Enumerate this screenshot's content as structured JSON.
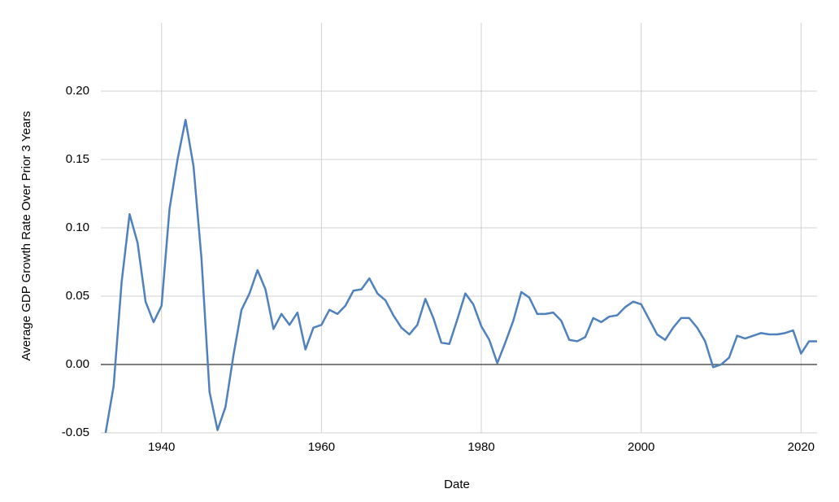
{
  "chart_data": {
    "type": "line",
    "xlabel": "Date",
    "ylabel": "Average GDP Growth Rate Over Prior 3 Years",
    "x": [
      1933,
      1934,
      1935,
      1936,
      1937,
      1938,
      1939,
      1940,
      1941,
      1942,
      1943,
      1944,
      1945,
      1946,
      1947,
      1948,
      1949,
      1950,
      1951,
      1952,
      1953,
      1954,
      1955,
      1956,
      1957,
      1958,
      1959,
      1960,
      1961,
      1962,
      1963,
      1964,
      1965,
      1966,
      1967,
      1968,
      1969,
      1970,
      1971,
      1972,
      1973,
      1974,
      1975,
      1976,
      1977,
      1978,
      1979,
      1980,
      1981,
      1982,
      1983,
      1984,
      1985,
      1986,
      1987,
      1988,
      1989,
      1990,
      1991,
      1992,
      1993,
      1994,
      1995,
      1996,
      1997,
      1998,
      1999,
      2000,
      2001,
      2002,
      2003,
      2004,
      2005,
      2006,
      2007,
      2008,
      2009,
      2010,
      2011,
      2012,
      2013,
      2014,
      2015,
      2016,
      2017,
      2018,
      2019,
      2020,
      2021,
      2022
    ],
    "values": [
      -0.05,
      -0.016,
      0.06,
      0.11,
      0.089,
      0.046,
      0.031,
      0.043,
      0.114,
      0.15,
      0.179,
      0.145,
      0.077,
      -0.02,
      -0.048,
      -0.031,
      0.007,
      0.04,
      0.052,
      0.069,
      0.055,
      0.026,
      0.037,
      0.029,
      0.038,
      0.011,
      0.027,
      0.029,
      0.04,
      0.037,
      0.043,
      0.054,
      0.055,
      0.063,
      0.052,
      0.047,
      0.036,
      0.027,
      0.022,
      0.029,
      0.048,
      0.034,
      0.016,
      0.015,
      0.033,
      0.052,
      0.044,
      0.028,
      0.018,
      0.001,
      0.016,
      0.032,
      0.053,
      0.049,
      0.037,
      0.037,
      0.038,
      0.032,
      0.018,
      0.017,
      0.02,
      0.034,
      0.031,
      0.035,
      0.036,
      0.042,
      0.046,
      0.044,
      0.033,
      0.022,
      0.018,
      0.027,
      0.034,
      0.034,
      0.027,
      0.017,
      -0.002,
      0.0,
      0.005,
      0.021,
      0.019,
      0.021,
      0.023,
      0.022,
      0.022,
      0.023,
      0.025,
      0.008,
      0.017,
      0.017
    ],
    "color": "#4f81bd",
    "xlim": [
      1932.4,
      2022.0
    ],
    "ylim": [
      -0.05,
      0.25
    ],
    "xticks": [
      1940,
      1960,
      1980,
      2000,
      2020
    ],
    "yticks": [
      {
        "value": -0.05,
        "label": "-0.05"
      },
      {
        "value": 0,
        "label": "0.00"
      },
      {
        "value": 0.05,
        "label": "0.05"
      },
      {
        "value": 0.1,
        "label": "0.10"
      },
      {
        "value": 0.15,
        "label": "0.15"
      },
      {
        "value": 0.2,
        "label": "0.20"
      }
    ],
    "grid": true
  }
}
